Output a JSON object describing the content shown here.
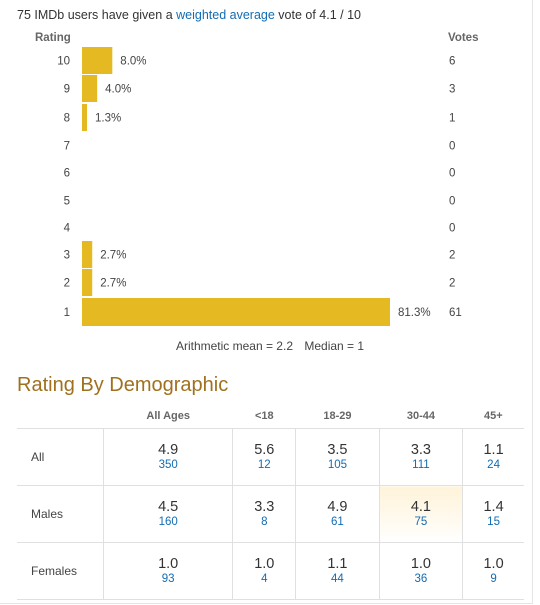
{
  "summary": {
    "prefix": "75 IMDb users have given a",
    "link_text": "weighted average",
    "suffix": "vote of 4.1 / 10"
  },
  "chart_data": {
    "type": "bar",
    "orientation": "horizontal",
    "ylabel": "Rating",
    "xlabel": "",
    "votes_header": "Votes",
    "categories": [
      "10",
      "9",
      "8",
      "7",
      "6",
      "5",
      "4",
      "3",
      "2",
      "1"
    ],
    "values": [
      8.0,
      4.0,
      1.3,
      0,
      0,
      0,
      0,
      2.7,
      2.7,
      81.3
    ],
    "value_labels": [
      "8.0%",
      "4.0%",
      "1.3%",
      "",
      "",
      "",
      "",
      "2.7%",
      "2.7%",
      "81.3%"
    ],
    "votes": [
      6,
      3,
      1,
      0,
      0,
      0,
      0,
      2,
      2,
      61
    ],
    "bar_color": "#e5b921",
    "xlim": [
      0,
      81.3
    ]
  },
  "stats": {
    "mean_text": "Arithmetic mean = 2.2",
    "median_text": "Median = 1"
  },
  "demographic": {
    "title": "Rating By Demographic",
    "columns": [
      "All Ages",
      "<18",
      "18-29",
      "30-44",
      "45+"
    ],
    "rows": [
      {
        "label": "All",
        "cells": [
          {
            "rating": "4.9",
            "votes": "350"
          },
          {
            "rating": "5.6",
            "votes": "12"
          },
          {
            "rating": "3.5",
            "votes": "105"
          },
          {
            "rating": "3.3",
            "votes": "111"
          },
          {
            "rating": "1.1",
            "votes": "24"
          }
        ]
      },
      {
        "label": "Males",
        "cells": [
          {
            "rating": "4.5",
            "votes": "160"
          },
          {
            "rating": "3.3",
            "votes": "8"
          },
          {
            "rating": "4.9",
            "votes": "61"
          },
          {
            "rating": "4.1",
            "votes": "75"
          },
          {
            "rating": "1.4",
            "votes": "15"
          }
        ]
      },
      {
        "label": "Females",
        "cells": [
          {
            "rating": "1.0",
            "votes": "93"
          },
          {
            "rating": "1.0",
            "votes": "4"
          },
          {
            "rating": "1.1",
            "votes": "44"
          },
          {
            "rating": "1.0",
            "votes": "36"
          },
          {
            "rating": "1.0",
            "votes": "9"
          }
        ]
      }
    ],
    "highlight_color": "#fff3d9"
  }
}
